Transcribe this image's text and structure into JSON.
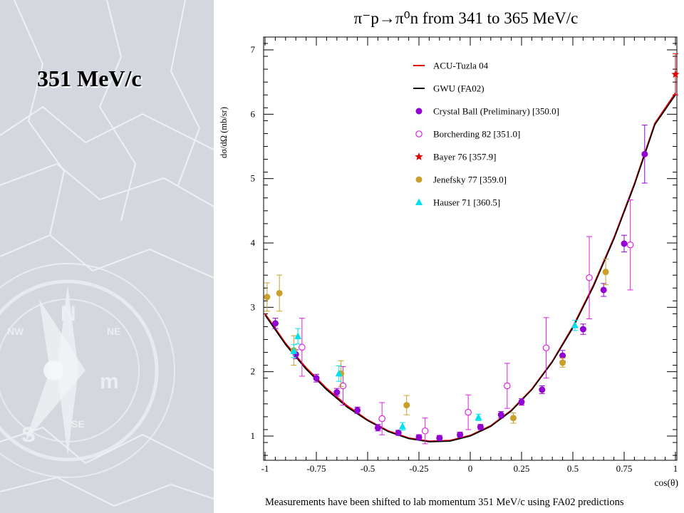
{
  "slide": {
    "title": "351 MeV/c",
    "footnote": "Measurements have been shifted to lab momentum 351 MeV/c using FA02 predictions"
  },
  "chart_data": {
    "type": "scatter",
    "title": "π⁻p→π⁰n from 341 to 365 MeV/c",
    "xlabel": "cos(θ)",
    "ylabel": "dσ/dΩ (mb/sr)",
    "xlim": [
      -1,
      1
    ],
    "ylim": [
      0.7,
      7.1
    ],
    "x_ticks": [
      "-1",
      "-0.75",
      "-0.5",
      "-0.25",
      "0",
      "0.25",
      "0.5",
      "0.75",
      "1"
    ],
    "y_ticks": [
      "1",
      "2",
      "3",
      "4",
      "5",
      "6",
      "7"
    ],
    "grid": false,
    "legend_position": "top-center",
    "curves": [
      {
        "name": "ACU-Tuzla 04",
        "color": "#e00000",
        "x": [
          -1,
          -0.9,
          -0.8,
          -0.7,
          -0.6,
          -0.5,
          -0.4,
          -0.3,
          -0.2,
          -0.1,
          0,
          0.1,
          0.2,
          0.3,
          0.4,
          0.5,
          0.6,
          0.7,
          0.8,
          0.9,
          1
        ],
        "y": [
          2.9,
          2.44,
          2.06,
          1.74,
          1.47,
          1.25,
          1.08,
          0.97,
          0.92,
          0.93,
          1.01,
          1.16,
          1.4,
          1.73,
          2.16,
          2.7,
          3.34,
          4.08,
          4.92,
          5.86,
          6.33
        ]
      },
      {
        "name": "GWU (FA02)",
        "color": "#000000",
        "x": [
          -1,
          -0.9,
          -0.8,
          -0.7,
          -0.6,
          -0.5,
          -0.4,
          -0.3,
          -0.2,
          -0.1,
          0,
          0.1,
          0.2,
          0.3,
          0.4,
          0.5,
          0.6,
          0.7,
          0.8,
          0.9,
          1
        ],
        "y": [
          2.88,
          2.42,
          2.04,
          1.72,
          1.45,
          1.24,
          1.07,
          0.96,
          0.91,
          0.92,
          1.0,
          1.15,
          1.39,
          1.72,
          2.15,
          2.68,
          3.32,
          4.06,
          4.9,
          5.84,
          6.3
        ]
      }
    ],
    "series": [
      {
        "name": "Crystal Ball (Preliminary)  [350.0]",
        "marker": "filled-circle",
        "color": "#9400d3",
        "x": [
          -0.95,
          -0.85,
          -0.75,
          -0.65,
          -0.55,
          -0.45,
          -0.35,
          -0.25,
          -0.15,
          -0.05,
          0.05,
          0.15,
          0.25,
          0.35,
          0.45,
          0.55,
          0.65,
          0.75,
          0.85
        ],
        "y": [
          2.75,
          2.27,
          1.9,
          1.68,
          1.4,
          1.13,
          1.05,
          0.98,
          0.97,
          1.02,
          1.14,
          1.33,
          1.53,
          1.72,
          2.25,
          2.66,
          3.27,
          3.99,
          5.38
        ],
        "err": [
          0.08,
          0.07,
          0.06,
          0.06,
          0.05,
          0.05,
          0.04,
          0.04,
          0.04,
          0.04,
          0.04,
          0.05,
          0.05,
          0.06,
          0.08,
          0.08,
          0.1,
          0.13,
          0.45
        ]
      },
      {
        "name": "Borcherding 82  [351.0]",
        "marker": "open-circle",
        "color": "#e020e0",
        "x": [
          -0.82,
          -0.62,
          -0.43,
          -0.22,
          -0.01,
          0.18,
          0.37,
          0.58,
          0.78
        ],
        "y": [
          2.38,
          1.78,
          1.27,
          1.08,
          1.37,
          1.78,
          2.37,
          3.46,
          3.97
        ],
        "err": [
          0.45,
          0.3,
          0.25,
          0.2,
          0.27,
          0.35,
          0.47,
          0.64,
          0.7
        ]
      },
      {
        "name": "Bayer 76  [357.9]",
        "marker": "star",
        "color": "#e00000",
        "x": [
          1.0
        ],
        "y": [
          6.62
        ],
        "err": [
          0.32
        ]
      },
      {
        "name": "Jenefsky 77  [359.0]",
        "marker": "filled-circle",
        "color": "#c8a02a",
        "x": [
          -0.99,
          -0.93,
          -0.86,
          -0.63,
          -0.31,
          0.21,
          0.45,
          0.66
        ],
        "y": [
          3.16,
          3.22,
          2.33,
          1.97,
          1.48,
          1.28,
          2.14,
          3.55
        ],
        "err": [
          0.22,
          0.28,
          0.23,
          0.2,
          0.15,
          0.08,
          0.07,
          0.2
        ]
      },
      {
        "name": "Hauser 71  [360.5]",
        "marker": "triangle",
        "color": "#00e0f0",
        "x": [
          -0.86,
          -0.84,
          -0.64,
          -0.33,
          0.04,
          0.51
        ],
        "y": [
          2.32,
          2.55,
          1.97,
          1.15,
          1.29,
          2.72
        ],
        "err": [
          0.1,
          0.12,
          0.12,
          0.06,
          0.05,
          0.08
        ]
      }
    ]
  }
}
